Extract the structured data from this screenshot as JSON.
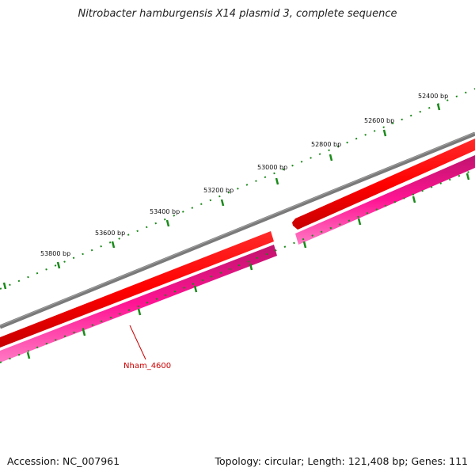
{
  "title": "Nitrobacter hamburgensis X14 plasmid 3, complete sequence",
  "footer": {
    "accession": "Accession: NC_007961",
    "summary": "Topology: circular; Length: 121,408 bp; Genes: 111"
  },
  "ticks": [
    "52400 bp",
    "52600 bp",
    "52800 bp",
    "53000 bp",
    "53200 bp",
    "53400 bp",
    "53600 bp",
    "53800 bp"
  ],
  "gene_label": "Nham_4600",
  "colors": {
    "backbone": "#808080",
    "forward_gene": "#ff0000",
    "reverse_gene": "#ff1493",
    "tick": "#1a8a1a",
    "gene_label": "#cc0000"
  }
}
